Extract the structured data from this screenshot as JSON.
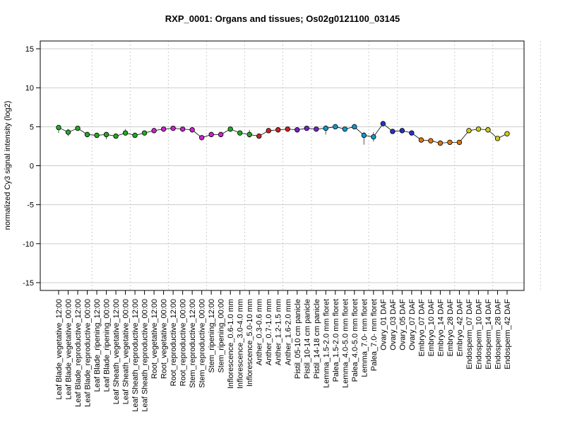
{
  "chart_data": {
    "type": "line",
    "title": "RXP_0001: Organs and tissues; Os02g0121100_03145",
    "xlabel": "",
    "ylabel": "normalized Cy3 signal intensity (log2)",
    "ylim": [
      -16,
      16
    ],
    "yticks": [
      -15,
      -10,
      -5,
      0,
      5,
      10,
      15
    ],
    "grid": "horizontal at y ticks; dotted vertical at group boundaries",
    "group_boundaries_after_index": [
      3,
      7,
      11,
      15,
      19,
      23,
      26,
      32,
      35,
      41,
      45,
      50
    ],
    "categories": [
      "Leaf Blade_vegetative_12:00",
      "Leaf Blade_vegetative_00:00",
      "Leaf Blade_reproductive_12:00",
      "Leaf Blade_reproductive_00:00",
      "Leaf Blade_ripening_12:00",
      "Leaf Blade_ripening_00:00",
      "Leaf Sheath_vegetative_12:00",
      "Leaf Sheath_vegetative_00:00",
      "Leaf Sheath_reproductive_12:00",
      "Leaf Sheath_reproductive_00:00",
      "Root_vegetative_12:00",
      "Root_vegetative_00:00",
      "Root_reproductive_12:00",
      "Root_reproductive_00:00",
      "Stem_reproductive_12:00",
      "Stem_reproductive_00:00",
      "Stem_ripening_12:00",
      "Stem_ripening_00:00",
      "Inflorescence_0.6-1.0 mm",
      "Inflorescence_3.0-4.0 mm",
      "Inflorescence_5.0-10 mm",
      "Anther_0.3-0.6 mm",
      "Anther_0.7-1.0 mm",
      "Anther_1.2-1.5 mm",
      "Anther_1.6-2.0 mm",
      "Pistil_05-10 cm panicle",
      "Pistil_10-14 cm panicle",
      "Pistil_14-18 cm panicle",
      "Lemma_1.5-2.0 mm floret",
      "Palea_1.5-2.0 mm floret",
      "Lemma_4.0-5.0 mm floret",
      "Palea_4.0-5.0 mm floret",
      "Lemma_7.0- mm floret",
      "Palea_7.0- mm floret",
      "Ovary_01 DAF",
      "Ovary_03 DAF",
      "Ovary_05 DAF",
      "Ovary_07 DAF",
      "Embryo_07 DAF",
      "Embryo_10 DAF",
      "Embryo_14 DAF",
      "Embryo_28 DAF",
      "Embryo_42 DAF",
      "Endosperm_07 DAF",
      "Endosperm_10 DAF",
      "Endosperm_14 DAF",
      "Endosperm_28 DAF",
      "Endosperm_42 DAF"
    ],
    "series": [
      {
        "values": [
          4.9,
          4.3,
          4.8,
          4.0,
          3.9,
          4.0,
          3.8,
          4.2,
          3.9,
          4.2,
          4.5,
          4.7,
          4.8,
          4.7,
          4.6,
          3.6,
          4.0,
          4.0,
          4.7,
          4.2,
          4.0,
          3.8,
          4.5,
          4.6,
          4.7,
          4.6,
          4.8,
          4.7,
          4.8,
          5.0,
          4.7,
          5.0,
          3.9,
          3.7,
          5.4,
          4.4,
          4.5,
          4.2,
          3.3,
          3.2,
          2.9,
          3.0,
          3.0,
          4.5,
          4.7,
          4.6,
          3.5,
          4.1
        ],
        "err_low": [
          0.7,
          0.5,
          0.2,
          0.3,
          0.2,
          0.6,
          0.3,
          0.2,
          0.2,
          0.2,
          0.2,
          0.2,
          0.1,
          0.2,
          0.3,
          0.2,
          0.2,
          0.2,
          0.3,
          0.3,
          0.4,
          0.2,
          0.2,
          0.2,
          0.2,
          0.2,
          0.2,
          0.3,
          0.8,
          0.2,
          0.2,
          0.2,
          1.2,
          0.6,
          0.2,
          0.3,
          0.2,
          0.3,
          0.3,
          0.2,
          0.3,
          0.2,
          0.2,
          0.3,
          0.2,
          0.2,
          0.2,
          0.3
        ],
        "err_high": [
          0.2,
          0.4,
          0.2,
          0.2,
          0.2,
          0.3,
          0.3,
          0.5,
          0.2,
          0.2,
          0.2,
          0.2,
          0.1,
          0.2,
          0.3,
          0.2,
          0.2,
          0.2,
          0.2,
          0.3,
          0.6,
          0.2,
          0.2,
          0.2,
          0.3,
          0.2,
          0.2,
          0.3,
          0.4,
          0.2,
          0.2,
          0.2,
          0.4,
          0.6,
          0.2,
          0.3,
          0.2,
          0.2,
          0.3,
          0.2,
          0.3,
          0.2,
          0.2,
          0.3,
          0.2,
          0.2,
          0.2,
          0.3
        ],
        "point_colors": [
          "#22aa22",
          "#22aa22",
          "#22aa22",
          "#22aa22",
          "#22aa22",
          "#22aa22",
          "#22aa22",
          "#22aa22",
          "#22aa22",
          "#22aa22",
          "#cc22cc",
          "#cc22cc",
          "#cc22cc",
          "#cc22cc",
          "#cc22cc",
          "#cc22cc",
          "#cc22cc",
          "#cc22cc",
          "#22aa22",
          "#22aa22",
          "#22aa22",
          "#cc2222",
          "#cc2222",
          "#cc2222",
          "#cc2222",
          "#7722cc",
          "#7722cc",
          "#7722cc",
          "#1199cc",
          "#1199cc",
          "#1199cc",
          "#1199cc",
          "#1199cc",
          "#1199cc",
          "#2233cc",
          "#2233cc",
          "#2233cc",
          "#2233cc",
          "#dd7711",
          "#dd7711",
          "#dd7711",
          "#dd7711",
          "#dd7711",
          "#cccc22",
          "#cccc22",
          "#cccc22",
          "#cccc22",
          "#cccc22"
        ]
      }
    ]
  }
}
